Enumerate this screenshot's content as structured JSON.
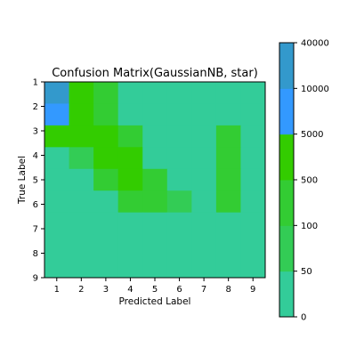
{
  "chart_data": {
    "type": "heatmap",
    "title": "Confusion Matrix(GaussianNB, star)",
    "xlabel": "Predicted Label",
    "ylabel": "True Label",
    "x_tick_labels": [
      "1",
      "2",
      "3",
      "4",
      "5",
      "6",
      "7",
      "8",
      "9"
    ],
    "y_tick_labels": [
      "1",
      "2",
      "3",
      "4",
      "5",
      "6",
      "7",
      "8",
      "9"
    ],
    "colorbar": {
      "tick_labels": [
        "0",
        "50",
        "100",
        "500",
        "5000",
        "10000",
        "40000"
      ],
      "bins": [
        {
          "range": [
            0,
            50
          ],
          "color": "#33cc99"
        },
        {
          "range": [
            50,
            100
          ],
          "color": "#33cc55"
        },
        {
          "range": [
            100,
            500
          ],
          "color": "#33cc33"
        },
        {
          "range": [
            500,
            5000
          ],
          "color": "#33cc00"
        },
        {
          "range": [
            5000,
            10000
          ],
          "color": "#3399ff"
        },
        {
          "range": [
            10000,
            40000
          ],
          "color": "#3399cc"
        }
      ]
    },
    "matrix": [
      [
        12000,
        600,
        200,
        0,
        0,
        0,
        0,
        0,
        0
      ],
      [
        7000,
        600,
        200,
        0,
        0,
        0,
        0,
        0,
        0
      ],
      [
        600,
        600,
        600,
        200,
        0,
        0,
        0,
        200,
        0
      ],
      [
        0,
        80,
        600,
        600,
        0,
        0,
        0,
        200,
        0
      ],
      [
        0,
        0,
        200,
        600,
        200,
        0,
        0,
        200,
        0
      ],
      [
        0,
        0,
        0,
        200,
        200,
        80,
        0,
        200,
        0
      ],
      [
        0,
        0,
        0,
        0,
        0,
        0,
        0,
        0,
        0
      ],
      [
        0,
        0,
        0,
        0,
        0,
        0,
        0,
        0,
        0
      ],
      [
        0,
        0,
        0,
        0,
        0,
        0,
        0,
        0,
        0
      ]
    ]
  }
}
